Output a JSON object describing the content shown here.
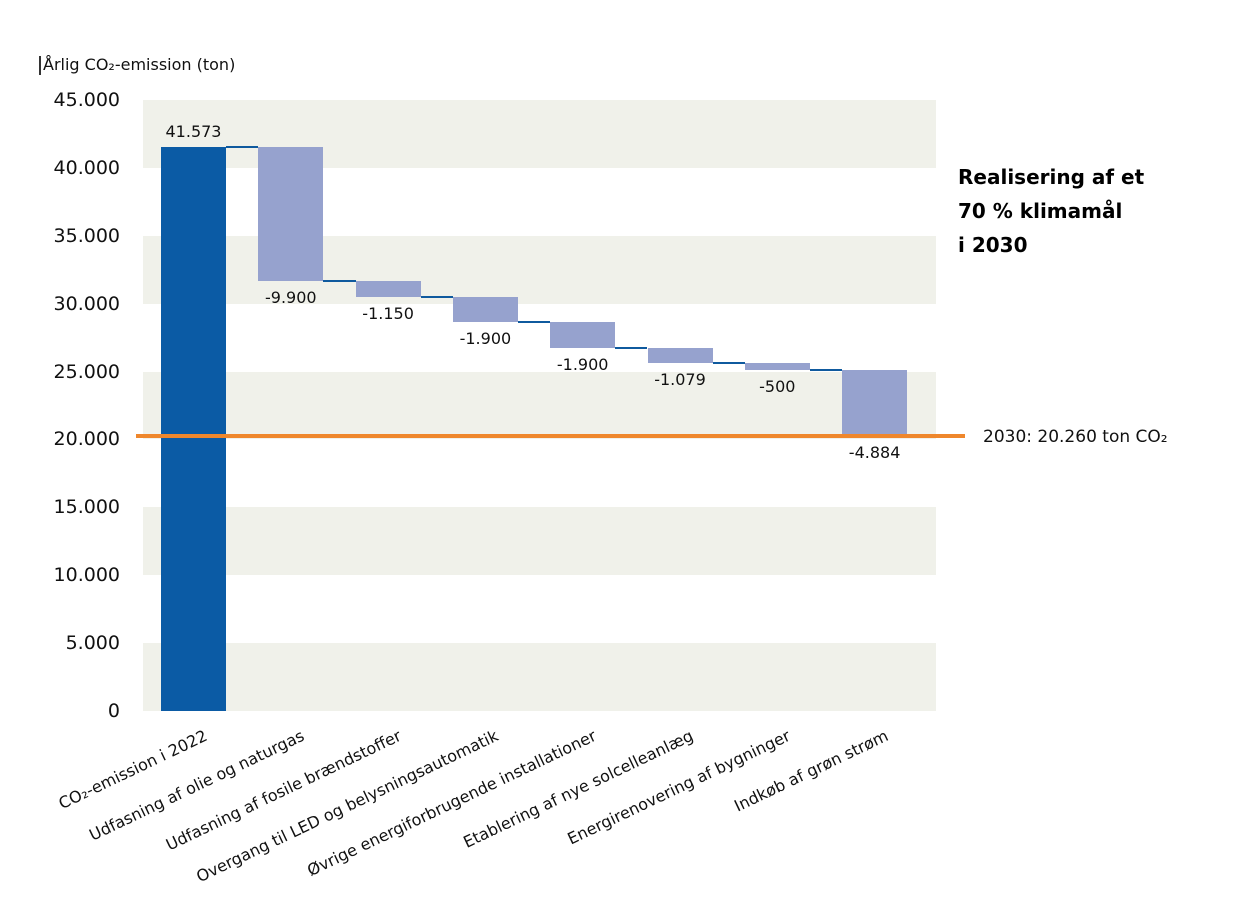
{
  "chart_data": {
    "type": "waterfall",
    "title": "Årlig CO₂-emission (ton)",
    "categories": [
      "CO₂-emission i 2022",
      "Udfasning af olie og naturgas",
      "Udfasning af fosile brændstoffer",
      "Overgang til LED og belysningsautomatik",
      "Øvrige energiforbrugende installationer",
      "Etablering af nye solcelleanlæg",
      "Energirenovering af bygninger",
      "Indkøb af grøn strøm"
    ],
    "values": [
      41573,
      -9900,
      -1150,
      -1900,
      -1900,
      -1079,
      -500,
      -4884
    ],
    "value_labels": [
      "41.573",
      "-9.900",
      "-1.150",
      "-1.900",
      "-1.900",
      "-1.079",
      "-500",
      "-4.884"
    ],
    "final_level": 20260,
    "y_axis": {
      "min": 0,
      "max": 45000,
      "ticks": [
        {
          "value": 45000,
          "label": "45.000"
        },
        {
          "value": 40000,
          "label": "40.000"
        },
        {
          "value": 35000,
          "label": "35.000"
        },
        {
          "value": 30000,
          "label": "30.000"
        },
        {
          "value": 25000,
          "label": "25.000"
        },
        {
          "value": 20000,
          "label": "20.000"
        },
        {
          "value": 15000,
          "label": "15.000"
        },
        {
          "value": 10000,
          "label": "10.000"
        },
        {
          "value": 5000,
          "label": "5.000"
        },
        {
          "value": 0,
          "label": "0"
        }
      ]
    },
    "target_line": {
      "value": 20260,
      "label": "2030: 20.260 ton CO₂"
    },
    "annotation_lines": [
      "Realisering af et",
      "70 % klimamål",
      "i 2030"
    ],
    "legend_position": "none",
    "grid": "alternating-horizontal-bands",
    "colors": {
      "total_bar": "#0B5BA5",
      "decrease_bar": "#96A2CE",
      "connector": "#0F5A9E",
      "target_line": "#EF872C",
      "band": "#F0F1EA",
      "text": "#111111"
    }
  }
}
